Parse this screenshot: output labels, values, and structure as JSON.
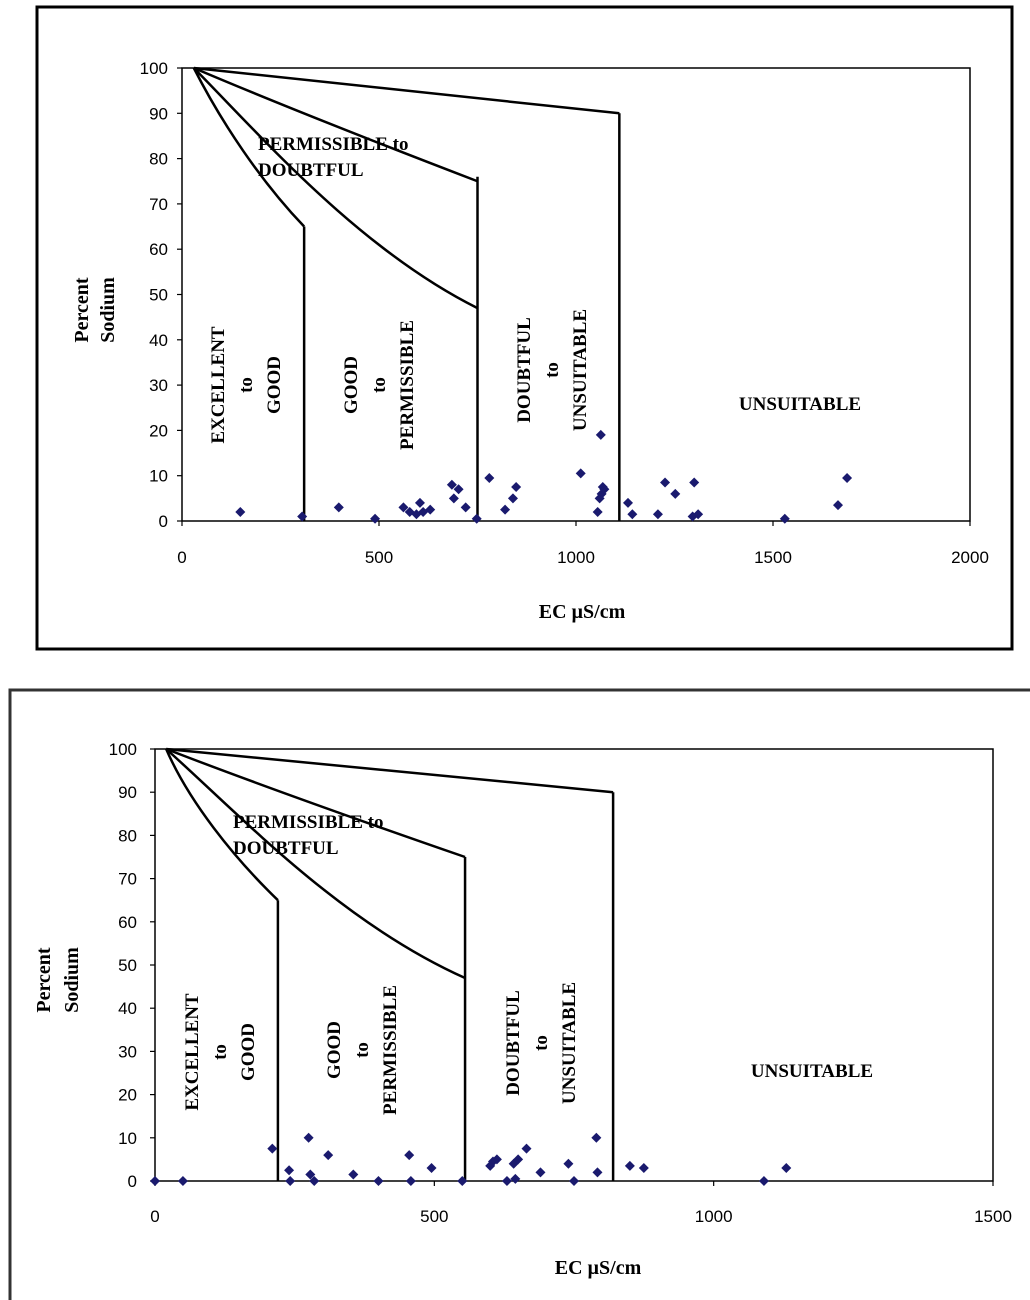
{
  "chart_data": [
    {
      "type": "scatter",
      "xlabel": "EC µS/cm",
      "ylabel": [
        "Percent",
        "Sodium"
      ],
      "xlim": [
        0,
        2000
      ],
      "ylim": [
        0,
        100
      ],
      "xticks": [
        "0",
        "500",
        "1000",
        "1500",
        "2000"
      ],
      "yticks": [
        "0",
        "10",
        "20",
        "30",
        "40",
        "50",
        "60",
        "70",
        "80",
        "90",
        "100"
      ],
      "regions": {
        "permissible_to_doubtful": [
          "PERMISSIBLE to",
          "DOUBTFUL"
        ],
        "excellent_to_good": [
          "EXCELLENT",
          "to",
          "GOOD"
        ],
        "good_to_permissible": [
          "GOOD",
          "to",
          "PERMISSIBLE"
        ],
        "doubtful_to_unsuitable": [
          "DOUBTFUL",
          "to",
          "UNSUITABLE"
        ],
        "unsuitable": "UNSUITABLE"
      },
      "boundaries": {
        "curve1": [
          [
            30,
            100
          ],
          [
            100,
            88
          ],
          [
            200,
            75
          ],
          [
            310,
            65
          ]
        ],
        "curve2": [
          [
            30,
            100
          ],
          [
            200,
            85
          ],
          [
            450,
            60
          ],
          [
            750,
            47
          ]
        ],
        "curve3": [
          [
            30,
            100
          ],
          [
            300,
            90
          ],
          [
            750,
            75
          ]
        ],
        "curve4": [
          [
            30,
            100
          ],
          [
            1110,
            90
          ]
        ],
        "verticals": [
          [
            310,
            0,
            65
          ],
          [
            750,
            0,
            76
          ],
          [
            1110,
            0,
            90
          ]
        ]
      },
      "points": [
        [
          148,
          2
        ],
        [
          305,
          1
        ],
        [
          398,
          3
        ],
        [
          490,
          0.5
        ],
        [
          562,
          3
        ],
        [
          578,
          2
        ],
        [
          595,
          1.5
        ],
        [
          604,
          4
        ],
        [
          612,
          2
        ],
        [
          630,
          2.5
        ],
        [
          685,
          8
        ],
        [
          690,
          5
        ],
        [
          702,
          7
        ],
        [
          720,
          3
        ],
        [
          748,
          0.5
        ],
        [
          780,
          9.5
        ],
        [
          820,
          2.5
        ],
        [
          840,
          5
        ],
        [
          848,
          7.5
        ],
        [
          1012,
          10.5
        ],
        [
          1055,
          2
        ],
        [
          1060,
          5
        ],
        [
          1063,
          19
        ],
        [
          1065,
          6
        ],
        [
          1068,
          7.5
        ],
        [
          1072,
          7
        ],
        [
          1132,
          4
        ],
        [
          1143,
          1.5
        ],
        [
          1208,
          1.5
        ],
        [
          1226,
          8.5
        ],
        [
          1252,
          6
        ],
        [
          1296,
          1
        ],
        [
          1300,
          8.5
        ],
        [
          1310,
          1.5
        ],
        [
          1530,
          0.5
        ],
        [
          1665,
          3.5
        ],
        [
          1688,
          9.5
        ]
      ]
    },
    {
      "type": "scatter",
      "xlabel": "EC µS/cm",
      "ylabel": [
        "Percent",
        "Sodium"
      ],
      "xlim": [
        0,
        1500
      ],
      "ylim": [
        0,
        100
      ],
      "xticks": [
        "0",
        "500",
        "1000",
        "1500"
      ],
      "yticks": [
        "0",
        "10",
        "20",
        "30",
        "40",
        "50",
        "60",
        "70",
        "80",
        "90",
        "100"
      ],
      "regions": {
        "permissible_to_doubtful": [
          "PERMISSIBLE to",
          "DOUBTFUL"
        ],
        "excellent_to_good": [
          "EXCELLENT",
          "to",
          "GOOD"
        ],
        "good_to_permissible": [
          "GOOD",
          "to",
          "PERMISSIBLE"
        ],
        "doubtful_to_unsuitable": [
          "DOUBTFUL",
          "to",
          "UNSUITABLE"
        ],
        "unsuitable": "UNSUITABLE"
      },
      "boundaries": {
        "curve1": [
          [
            20,
            100
          ],
          [
            60,
            88
          ],
          [
            140,
            75
          ],
          [
            220,
            65
          ]
        ],
        "curve2": [
          [
            20,
            100
          ],
          [
            150,
            85
          ],
          [
            330,
            60
          ],
          [
            555,
            47
          ]
        ],
        "curve3": [
          [
            20,
            100
          ],
          [
            220,
            90
          ],
          [
            555,
            75
          ]
        ],
        "curve4": [
          [
            20,
            100
          ],
          [
            820,
            90
          ]
        ],
        "verticals": [
          [
            220,
            0,
            65
          ],
          [
            555,
            0,
            75
          ],
          [
            820,
            0,
            90
          ]
        ]
      },
      "points": [
        [
          0,
          0
        ],
        [
          50,
          0
        ],
        [
          210,
          7.5
        ],
        [
          240,
          2.5
        ],
        [
          242,
          0
        ],
        [
          275,
          10
        ],
        [
          278,
          1.5
        ],
        [
          285,
          0
        ],
        [
          310,
          6
        ],
        [
          355,
          1.5
        ],
        [
          400,
          0
        ],
        [
          455,
          6
        ],
        [
          458,
          0
        ],
        [
          495,
          3
        ],
        [
          550,
          0
        ],
        [
          600,
          3.5
        ],
        [
          605,
          4.5
        ],
        [
          612,
          5
        ],
        [
          630,
          0
        ],
        [
          642,
          4
        ],
        [
          645,
          0.5
        ],
        [
          650,
          5
        ],
        [
          665,
          7.5
        ],
        [
          690,
          2
        ],
        [
          740,
          4
        ],
        [
          750,
          0
        ],
        [
          790,
          10
        ],
        [
          792,
          2
        ],
        [
          850,
          3.5
        ],
        [
          875,
          3
        ],
        [
          1090,
          0
        ],
        [
          1130,
          3
        ]
      ]
    }
  ]
}
